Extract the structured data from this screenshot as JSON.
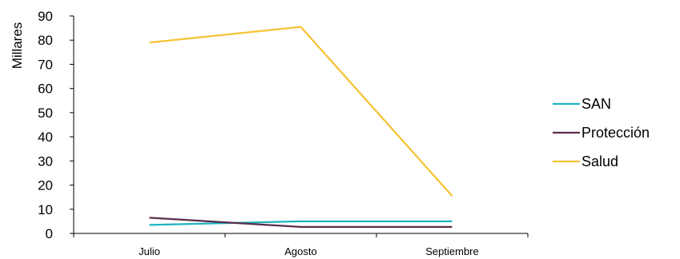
{
  "chart_data": {
    "type": "line",
    "categories": [
      "Julio",
      "Agosto",
      "Septiembre"
    ],
    "ylabel": "Millares",
    "ylim": [
      0,
      90
    ],
    "yticks": [
      0,
      10,
      20,
      30,
      40,
      50,
      60,
      70,
      80,
      90
    ],
    "grid": false,
    "legend_position": "right",
    "series": [
      {
        "name": "SAN",
        "color": "#1fb3bf",
        "values": [
          3.5,
          5,
          5
        ]
      },
      {
        "name": "Protección",
        "color": "#5a2d4a",
        "values": [
          6.5,
          2.7,
          2.7
        ]
      },
      {
        "name": "Salud",
        "color": "#f5c334",
        "values": [
          79,
          85.5,
          15.5
        ]
      }
    ]
  }
}
